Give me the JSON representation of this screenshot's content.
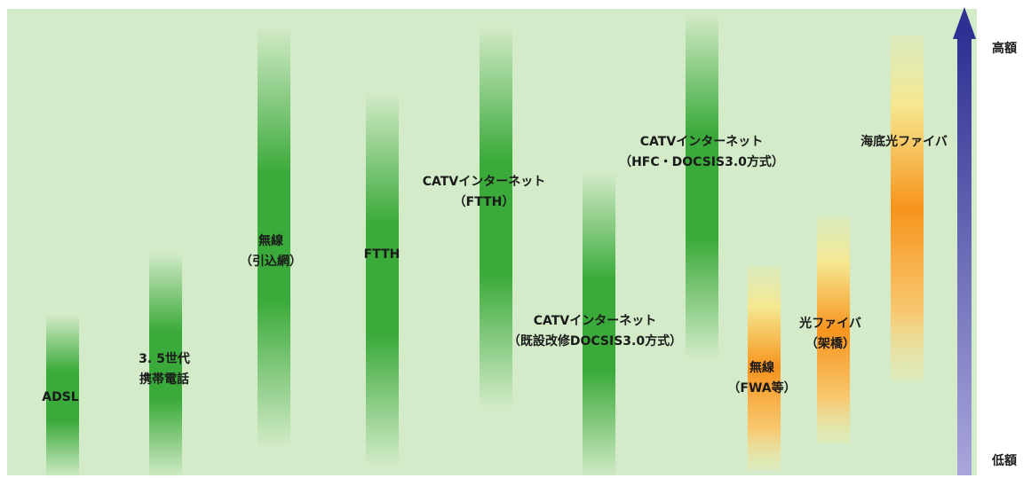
{
  "axis": {
    "high": "高額",
    "low": "低額"
  },
  "nodes": [
    {
      "lines": [
        "ADSL"
      ]
    },
    {
      "lines": [
        "3. 5世代",
        "携帯電話"
      ]
    },
    {
      "lines": [
        "無線",
        "（引込網）"
      ]
    },
    {
      "lines": [
        "FTTH"
      ]
    },
    {
      "lines": [
        "CATVインターネット",
        "（FTTH）"
      ]
    },
    {
      "lines": [
        "CATVインターネット",
        "（既設改修DOCSIS3.0方式）"
      ]
    },
    {
      "lines": [
        "CATVインターネット",
        "（HFC・DOCSIS3.0方式）"
      ]
    },
    {
      "lines": [
        "無線",
        "（FWA等）"
      ]
    },
    {
      "lines": [
        "光ファイバ",
        "（架橋）"
      ]
    },
    {
      "lines": [
        "海底光ファイバ"
      ]
    }
  ]
}
